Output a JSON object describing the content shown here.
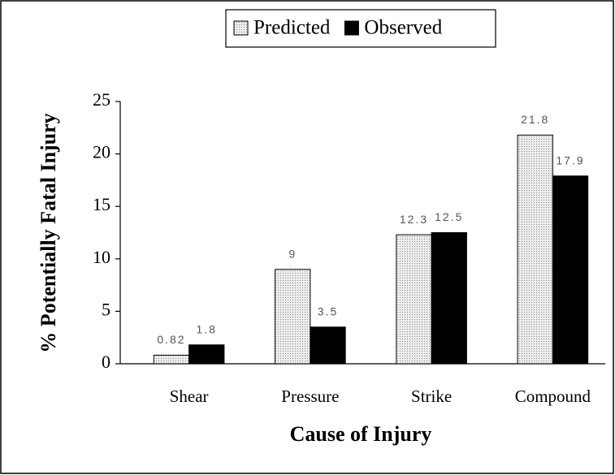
{
  "chart_data": {
    "type": "bar",
    "x_label": "Cause of Injury",
    "y_label": "% Potentially Fatal Injury",
    "categories": [
      "Shear",
      "Pressure",
      "Strike",
      "Compound"
    ],
    "series": [
      {
        "name": "Predicted",
        "color": "#ececec",
        "values": [
          0.82,
          9,
          12.3,
          21.8
        ]
      },
      {
        "name": "Observed",
        "color": "#000000",
        "values": [
          1.8,
          3.5,
          12.5,
          17.9
        ]
      }
    ],
    "ylim": [
      0,
      25
    ],
    "yticks": [
      0,
      5,
      10,
      15,
      20,
      25
    ],
    "grid": false,
    "legend": "top"
  }
}
